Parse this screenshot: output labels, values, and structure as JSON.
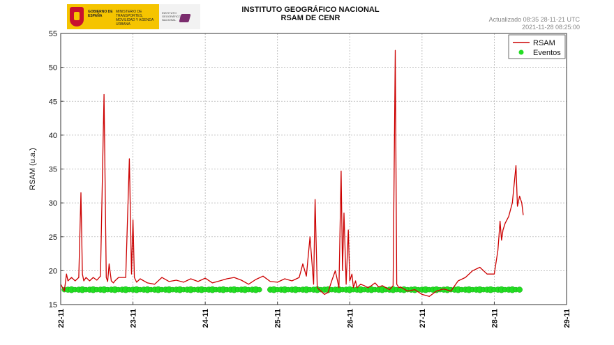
{
  "header": {
    "title_line1": "INSTITUTO GEOGRÁFICO NACIONAL",
    "title_line2": "RSAM DE CENR",
    "updated_line1": "Actualizado 08:35 28-11-21 UTC",
    "updated_line2": "2021-11-28 08:25:00"
  },
  "logo": {
    "gov_text": "GOBIERNO DE ESPAÑA",
    "ministry_text": "MINISTERIO DE TRANSPORTES, MOVILIDAD Y AGENDA URBANA",
    "ign_text": "INSTITUTO GEOGRÁFICO NACIONAL"
  },
  "chart_data": {
    "type": "line",
    "ylabel": "RSAM (u.a.)",
    "xlabel": "",
    "xlim": [
      0,
      7
    ],
    "ylim": [
      15,
      55
    ],
    "yticks": [
      15,
      20,
      25,
      30,
      35,
      40,
      45,
      50,
      55
    ],
    "xtick_labels": [
      "22-11",
      "23-11",
      "24-11",
      "25-11",
      "26-11",
      "27-11",
      "28-11",
      "29-11"
    ],
    "grid": true,
    "legend_position": "top-right",
    "colors": {
      "rsam": "#cc0000",
      "eventos": "#22dd22",
      "grid": "#b0b0b0"
    },
    "series": [
      {
        "name": "RSAM",
        "x": [
          0.0,
          0.05,
          0.08,
          0.1,
          0.15,
          0.2,
          0.25,
          0.28,
          0.3,
          0.32,
          0.35,
          0.4,
          0.45,
          0.5,
          0.55,
          0.6,
          0.63,
          0.65,
          0.67,
          0.7,
          0.73,
          0.75,
          0.8,
          0.9,
          0.95,
          0.98,
          1.0,
          1.02,
          1.05,
          1.1,
          1.2,
          1.3,
          1.4,
          1.5,
          1.6,
          1.7,
          1.8,
          1.9,
          2.0,
          2.1,
          2.2,
          2.3,
          2.4,
          2.5,
          2.6,
          2.7,
          2.8,
          2.9,
          3.0,
          3.1,
          3.2,
          3.3,
          3.35,
          3.4,
          3.45,
          3.5,
          3.52,
          3.55,
          3.6,
          3.65,
          3.7,
          3.72,
          3.75,
          3.8,
          3.85,
          3.88,
          3.9,
          3.92,
          3.95,
          3.98,
          4.0,
          4.03,
          4.05,
          4.08,
          4.1,
          4.15,
          4.2,
          4.25,
          4.3,
          4.35,
          4.4,
          4.45,
          4.5,
          4.55,
          4.6,
          4.63,
          4.65,
          4.68,
          4.7,
          4.75,
          4.8,
          4.9,
          5.0,
          5.1,
          5.2,
          5.3,
          5.4,
          5.5,
          5.6,
          5.7,
          5.8,
          5.9,
          6.0,
          6.05,
          6.08,
          6.1,
          6.12,
          6.15,
          6.2,
          6.25,
          6.3,
          6.32,
          6.35,
          6.38,
          6.4
        ],
        "values": [
          18.0,
          17.0,
          19.5,
          18.5,
          19.0,
          18.5,
          19.0,
          31.5,
          19.5,
          18.5,
          19.0,
          18.5,
          19.0,
          18.6,
          19.2,
          46.0,
          19.0,
          18.4,
          21.0,
          18.5,
          18.2,
          18.5,
          19.0,
          19.0,
          36.5,
          19.5,
          27.5,
          19.0,
          18.3,
          18.8,
          18.2,
          18.0,
          19.0,
          18.4,
          18.6,
          18.3,
          18.8,
          18.4,
          18.9,
          18.2,
          18.5,
          18.8,
          19.0,
          18.6,
          18.0,
          18.7,
          19.2,
          18.4,
          18.3,
          18.8,
          18.5,
          19.0,
          21.0,
          19.2,
          25.0,
          18.0,
          30.5,
          17.5,
          17.0,
          16.5,
          16.8,
          17.5,
          18.5,
          20.0,
          17.5,
          34.7,
          20.0,
          28.5,
          18.0,
          26.0,
          18.5,
          19.5,
          17.5,
          18.5,
          17.5,
          18.0,
          17.8,
          17.5,
          17.8,
          18.2,
          17.6,
          17.8,
          17.5,
          17.2,
          17.8,
          52.5,
          18.0,
          17.5,
          17.6,
          17.3,
          17.0,
          17.2,
          16.5,
          16.2,
          17.0,
          17.3,
          17.0,
          18.5,
          19.0,
          20.0,
          20.5,
          19.5,
          19.5,
          23.0,
          27.3,
          24.5,
          26.0,
          27.0,
          28.0,
          30.0,
          35.5,
          29.5,
          31.0,
          30.0,
          28.2
        ]
      }
    ],
    "eventos": {
      "name": "Eventos",
      "y": 17.2,
      "x": [
        0.05,
        0.1,
        0.15,
        0.2,
        0.25,
        0.3,
        0.35,
        0.4,
        0.45,
        0.5,
        0.55,
        0.6,
        0.65,
        0.7,
        0.75,
        0.8,
        0.85,
        0.9,
        0.95,
        1.0,
        1.05,
        1.1,
        1.15,
        1.2,
        1.25,
        1.3,
        1.35,
        1.4,
        1.45,
        1.5,
        1.55,
        1.6,
        1.65,
        1.7,
        1.75,
        1.8,
        1.85,
        1.9,
        1.95,
        2.0,
        2.05,
        2.1,
        2.15,
        2.2,
        2.25,
        2.3,
        2.35,
        2.4,
        2.45,
        2.5,
        2.55,
        2.6,
        2.65,
        2.7,
        2.75,
        2.9,
        2.95,
        3.0,
        3.05,
        3.1,
        3.15,
        3.2,
        3.25,
        3.3,
        3.35,
        3.4,
        3.45,
        3.5,
        3.55,
        3.6,
        3.65,
        3.7,
        3.75,
        3.8,
        3.85,
        3.9,
        3.95,
        4.0,
        4.05,
        4.1,
        4.15,
        4.2,
        4.25,
        4.3,
        4.35,
        4.4,
        4.45,
        4.5,
        4.55,
        4.6,
        4.65,
        4.7,
        4.75,
        4.8,
        4.85,
        4.9,
        4.95,
        5.0,
        5.05,
        5.1,
        5.15,
        5.2,
        5.25,
        5.3,
        5.35,
        5.4,
        5.45,
        5.5,
        5.55,
        5.6,
        5.65,
        5.7,
        5.75,
        5.8,
        5.85,
        5.9,
        5.95,
        6.0,
        6.05,
        6.1,
        6.15,
        6.2,
        6.25,
        6.3,
        6.35
      ]
    }
  }
}
